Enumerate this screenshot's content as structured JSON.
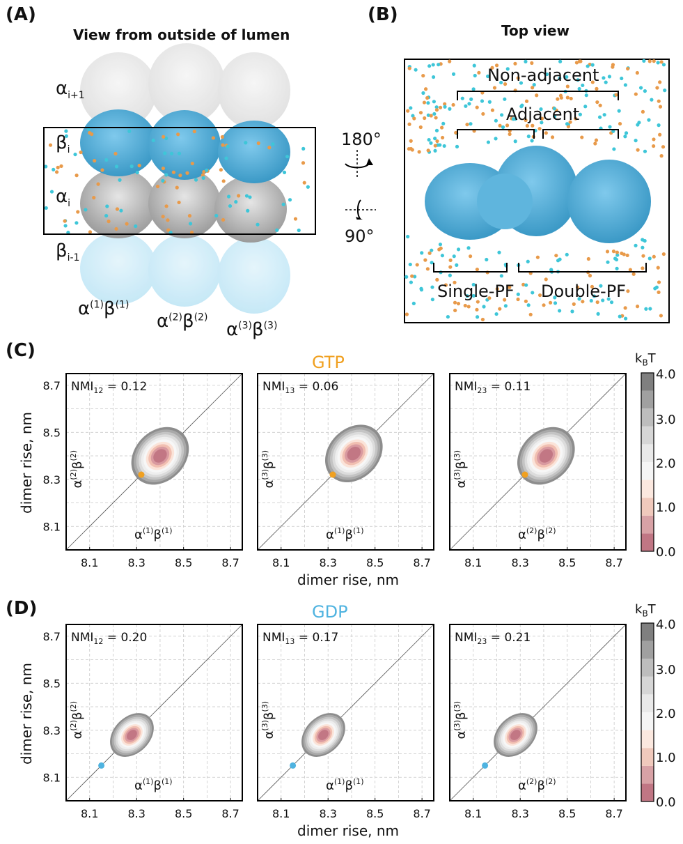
{
  "panelA": {
    "letter": "(A)",
    "title": "View from outside of lumen",
    "labels": [
      {
        "base": "α",
        "sub": "i+1",
        "sup": ""
      },
      {
        "base": "β",
        "sub": "i",
        "sup": ""
      },
      {
        "base": "α",
        "sub": "i",
        "sup": ""
      },
      {
        "base": "β",
        "sub": "i-1",
        "sup": ""
      }
    ],
    "dimers": [
      {
        "a": "(1)",
        "b": "(1)"
      },
      {
        "a": "(2)",
        "b": "(2)"
      },
      {
        "a": "(3)",
        "b": "(3)"
      }
    ],
    "rotations": [
      "180°",
      "90°"
    ]
  },
  "panelB": {
    "letter": "(B)",
    "title": "Top view",
    "nonadjacent": "Non-adjacent",
    "adjacent": "Adjacent",
    "single": "Single-PF",
    "double": "Double-PF"
  },
  "panelC": {
    "letter": "(C)",
    "title": "GTP",
    "title_color": "#f0a020",
    "ticks": [
      "8.1",
      "8.3",
      "8.5",
      "8.7"
    ],
    "xlabel": "dimer rise, nm",
    "ylabel": "dimer rise, nm",
    "cbar_unit": "k",
    "cbar_unit_sub": "B",
    "cbar_unit_tail": "T",
    "cbar_ticks": [
      "4.0",
      "3.0",
      "2.0",
      "1.0",
      "0.0"
    ],
    "plots": [
      {
        "nmi": "NMI",
        "nmi_sub": "12",
        "nmi_val": " = 0.12",
        "xax": "(1)",
        "yax": "(2)"
      },
      {
        "nmi": "NMI",
        "nmi_sub": "13",
        "nmi_val": " = 0.06",
        "xax": "(1)",
        "yax": "(3)"
      },
      {
        "nmi": "NMI",
        "nmi_sub": "23",
        "nmi_val": " = 0.11",
        "xax": "(2)",
        "yax": "(3)"
      }
    ]
  },
  "panelD": {
    "letter": "(D)",
    "title": "GDP",
    "title_color": "#4fb3e0",
    "ticks": [
      "8.1",
      "8.3",
      "8.5",
      "8.7"
    ],
    "xlabel": "dimer rise, nm",
    "ylabel": "dimer rise, nm",
    "cbar_unit": "k",
    "cbar_unit_sub": "B",
    "cbar_unit_tail": "T",
    "cbar_ticks": [
      "4.0",
      "3.0",
      "2.0",
      "1.0",
      "0.0"
    ],
    "plots": [
      {
        "nmi": "NMI",
        "nmi_sub": "12",
        "nmi_val": " = 0.20",
        "xax": "(1)",
        "yax": "(2)"
      },
      {
        "nmi": "NMI",
        "nmi_sub": "13",
        "nmi_val": " = 0.17",
        "xax": "(1)",
        "yax": "(3)"
      },
      {
        "nmi": "NMI",
        "nmi_sub": "23",
        "nmi_val": " = 0.21",
        "xax": "(2)",
        "yax": "(3)"
      }
    ]
  },
  "chart_data": [
    {
      "type": "heatmap",
      "title": "GTP",
      "xlabel": "dimer rise, nm",
      "ylabel": "dimer rise, nm",
      "xlim": [
        8.0,
        8.75
      ],
      "ylim": [
        8.0,
        8.75
      ],
      "x_ticks": [
        8.1,
        8.3,
        8.5,
        8.7
      ],
      "y_ticks": [
        8.1,
        8.3,
        8.5,
        8.7
      ],
      "colorbar_range": [
        0.0,
        4.0
      ],
      "grid": true,
      "subplots": [
        {
          "nmi_label": "NMI12 = 0.12",
          "x_axis": "α(1)β(1)",
          "y_axis": "α(2)β(2)",
          "center": [
            8.4,
            8.4
          ],
          "reference_point": [
            8.32,
            8.32
          ]
        },
        {
          "nmi_label": "NMI13 = 0.06",
          "x_axis": "α(1)β(1)",
          "y_axis": "α(3)β(3)",
          "center": [
            8.41,
            8.41
          ],
          "reference_point": [
            8.32,
            8.32
          ]
        },
        {
          "nmi_label": "NMI23 = 0.11",
          "x_axis": "α(2)β(2)",
          "y_axis": "α(3)β(3)",
          "center": [
            8.41,
            8.4
          ],
          "reference_point": [
            8.32,
            8.32
          ]
        }
      ]
    },
    {
      "type": "heatmap",
      "title": "GDP",
      "xlabel": "dimer rise, nm",
      "ylabel": "dimer rise, nm",
      "xlim": [
        8.0,
        8.75
      ],
      "ylim": [
        8.0,
        8.75
      ],
      "x_ticks": [
        8.1,
        8.3,
        8.5,
        8.7
      ],
      "y_ticks": [
        8.1,
        8.3,
        8.5,
        8.7
      ],
      "colorbar_range": [
        0.0,
        4.0
      ],
      "grid": true,
      "subplots": [
        {
          "nmi_label": "NMI12 = 0.20",
          "x_axis": "α(1)β(1)",
          "y_axis": "α(2)β(2)",
          "center": [
            8.28,
            8.28
          ],
          "reference_point": [
            8.15,
            8.15
          ]
        },
        {
          "nmi_label": "NMI13 = 0.17",
          "x_axis": "α(1)β(1)",
          "y_axis": "α(3)β(3)",
          "center": [
            8.28,
            8.28
          ],
          "reference_point": [
            8.15,
            8.15
          ]
        },
        {
          "nmi_label": "NMI23 = 0.21",
          "x_axis": "α(2)β(2)",
          "y_axis": "α(3)β(3)",
          "center": [
            8.28,
            8.28
          ],
          "reference_point": [
            8.15,
            8.15
          ]
        }
      ]
    }
  ]
}
